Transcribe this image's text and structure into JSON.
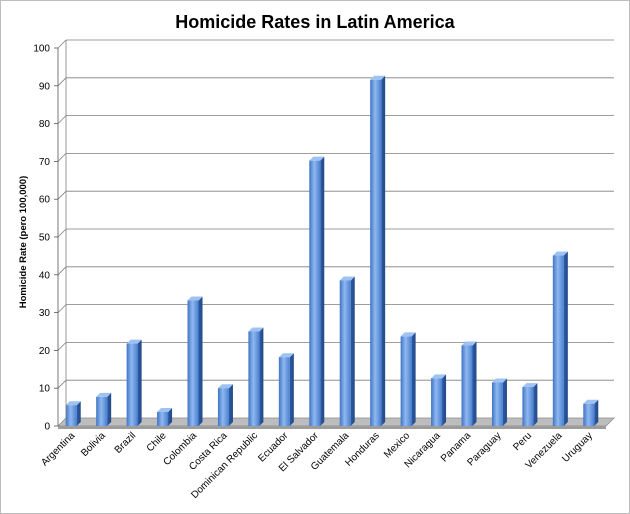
{
  "chart_data": {
    "type": "bar",
    "title": "Homicide Rates in Latin America",
    "xlabel": "",
    "ylabel": "Homicide Rate (pero 100,000)",
    "ylim": [
      0,
      100
    ],
    "yticks": [
      "0",
      "10",
      "20",
      "30",
      "40",
      "50",
      "60",
      "70",
      "80",
      "90",
      "100"
    ],
    "grid": true,
    "legend": "none",
    "bar_color": "#5b8fd6",
    "categories": [
      "Argentina",
      "Bolivia",
      "Brazil",
      "Chile",
      "Colombia",
      "Costa Rica",
      "Dominican Republic",
      "Ecuador",
      "El Salvador",
      "Guatemala",
      "Honduras",
      "Mexico",
      "Nicaragua",
      "Panama",
      "Paraguay",
      "Peru",
      "Venezuela",
      "Uruguay"
    ],
    "values": [
      5.5,
      7.7,
      21.8,
      3.7,
      33.2,
      10.0,
      25.0,
      18.2,
      70.2,
      38.5,
      91.6,
      23.7,
      12.6,
      21.3,
      11.5,
      10.3,
      45.1,
      5.9
    ]
  }
}
